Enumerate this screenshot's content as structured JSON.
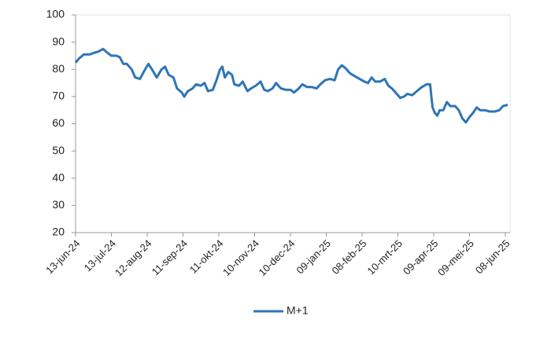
{
  "chart_data": {
    "type": "line",
    "x": [
      "2024-06-13",
      "2024-06-16",
      "2024-06-20",
      "2024-06-25",
      "2024-06-28",
      "2024-07-02",
      "2024-07-06",
      "2024-07-10",
      "2024-07-13",
      "2024-07-17",
      "2024-07-20",
      "2024-07-23",
      "2024-07-26",
      "2024-07-30",
      "2024-08-02",
      "2024-08-06",
      "2024-08-09",
      "2024-08-13",
      "2024-08-16",
      "2024-08-20",
      "2024-08-24",
      "2024-08-27",
      "2024-08-30",
      "2024-09-03",
      "2024-09-06",
      "2024-09-10",
      "2024-09-12",
      "2024-09-15",
      "2024-09-19",
      "2024-09-22",
      "2024-09-26",
      "2024-09-29",
      "2024-10-02",
      "2024-10-06",
      "2024-10-09",
      "2024-10-12",
      "2024-10-14",
      "2024-10-16",
      "2024-10-19",
      "2024-10-22",
      "2024-10-24",
      "2024-10-28",
      "2024-10-31",
      "2024-11-04",
      "2024-11-07",
      "2024-11-11",
      "2024-11-15",
      "2024-11-18",
      "2024-11-21",
      "2024-11-25",
      "2024-11-28",
      "2024-12-02",
      "2024-12-06",
      "2024-12-10",
      "2024-12-13",
      "2024-12-17",
      "2024-12-20",
      "2024-12-24",
      "2024-12-28",
      "2025-01-01",
      "2025-01-04",
      "2025-01-08",
      "2025-01-12",
      "2025-01-16",
      "2025-01-19",
      "2025-01-22",
      "2025-01-25",
      "2025-01-29",
      "2025-02-02",
      "2025-02-06",
      "2025-02-10",
      "2025-02-13",
      "2025-02-16",
      "2025-02-19",
      "2025-02-23",
      "2025-02-27",
      "2025-03-02",
      "2025-03-05",
      "2025-03-09",
      "2025-03-12",
      "2025-03-15",
      "2025-03-18",
      "2025-03-22",
      "2025-03-26",
      "2025-03-30",
      "2025-04-03",
      "2025-04-06",
      "2025-04-08",
      "2025-04-10",
      "2025-04-12",
      "2025-04-14",
      "2025-04-17",
      "2025-04-20",
      "2025-04-23",
      "2025-04-27",
      "2025-04-30",
      "2025-05-03",
      "2025-05-06",
      "2025-05-09",
      "2025-05-12",
      "2025-05-15",
      "2025-05-18",
      "2025-05-22",
      "2025-05-26",
      "2025-05-30",
      "2025-06-03",
      "2025-06-06",
      "2025-06-10"
    ],
    "series": [
      {
        "name": "M+1",
        "color": "#2e75b6",
        "values": [
          82.5,
          84,
          85.5,
          85.5,
          86,
          86.5,
          87.5,
          86,
          85,
          85,
          84.5,
          82,
          82,
          80,
          77,
          76.5,
          79,
          82,
          80,
          77,
          80,
          81,
          78,
          77,
          73,
          71.5,
          70,
          72,
          73,
          74.5,
          74,
          75,
          72,
          72.5,
          76,
          80,
          81,
          77,
          79,
          78,
          74.5,
          74,
          75.5,
          72,
          73,
          74,
          75.5,
          72.5,
          72,
          73,
          75,
          73,
          72.5,
          72.5,
          71.5,
          73,
          74.5,
          73.5,
          73.5,
          73,
          74.5,
          76,
          76.5,
          76,
          80,
          81.5,
          80.5,
          78.5,
          77.5,
          76.5,
          75.5,
          75,
          77,
          75.5,
          75.5,
          76.5,
          74,
          73,
          71,
          69.5,
          70,
          71,
          70.5,
          72,
          73.5,
          74.5,
          74.5,
          66,
          64,
          63,
          65,
          65,
          68,
          66.5,
          66.5,
          65,
          62,
          60.5,
          62.5,
          64,
          66,
          65,
          65,
          64.5,
          64.5,
          65,
          66.5,
          67
        ]
      }
    ],
    "xlim": [
      "2024-06-13",
      "2025-06-10"
    ],
    "xticks": [
      {
        "value": "2024-06-13",
        "label": "13-jun-24"
      },
      {
        "value": "2024-07-13",
        "label": "13-jul-24"
      },
      {
        "value": "2024-08-12",
        "label": "12-aug-24"
      },
      {
        "value": "2024-09-11",
        "label": "11-sep-24"
      },
      {
        "value": "2024-10-11",
        "label": "11-okt-24"
      },
      {
        "value": "2024-11-10",
        "label": "10-nov-24"
      },
      {
        "value": "2024-12-10",
        "label": "10-dec-24"
      },
      {
        "value": "2025-01-09",
        "label": "09-jan-25"
      },
      {
        "value": "2025-02-08",
        "label": "08-feb-25"
      },
      {
        "value": "2025-03-10",
        "label": "10-mrt-25"
      },
      {
        "value": "2025-04-09",
        "label": "09-apr-25"
      },
      {
        "value": "2025-05-09",
        "label": "09-mei-25"
      },
      {
        "value": "2025-06-08",
        "label": "08-jun-25"
      }
    ],
    "ylim": [
      20,
      100
    ],
    "yticks": [
      20,
      30,
      40,
      50,
      60,
      70,
      80,
      90,
      100
    ],
    "legend": "bottom"
  }
}
